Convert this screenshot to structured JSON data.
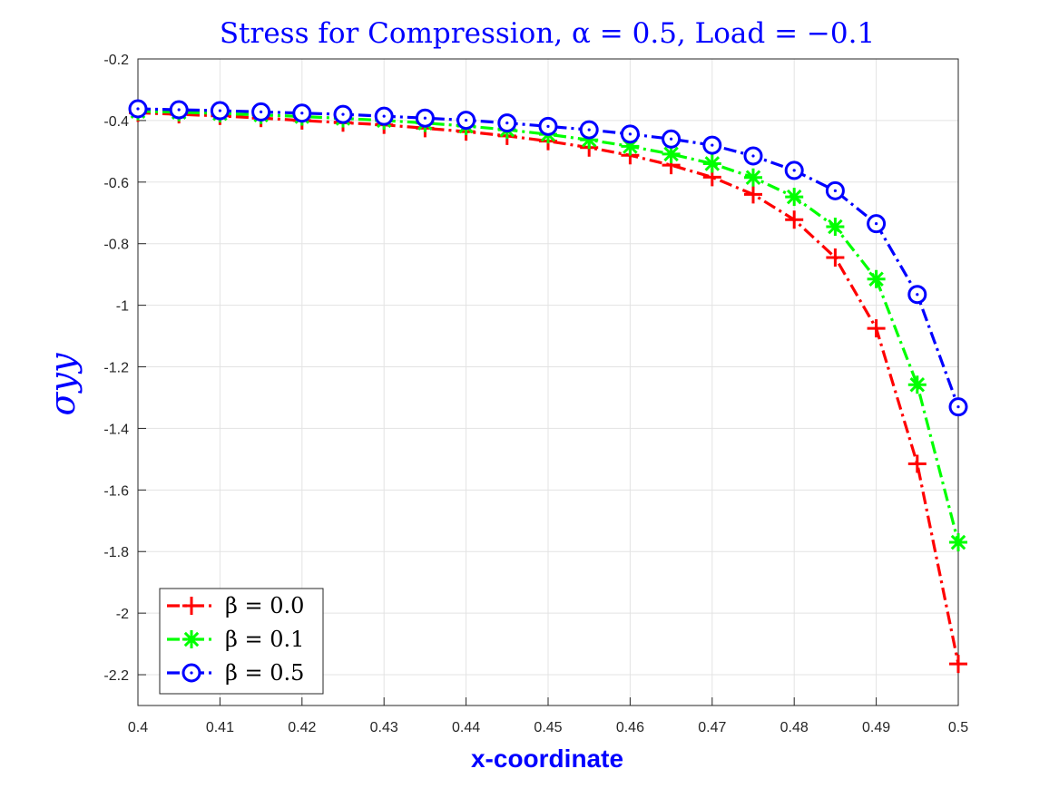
{
  "chart_data": {
    "type": "line",
    "title": "Stress for Compression, α = 0.5, Load = −0.1",
    "title_color": "#0000ff",
    "xlabel": "x-coordinate",
    "ylabel": "σyy",
    "label_color": "#0000ff",
    "xlim": [
      0.4,
      0.5
    ],
    "ylim": [
      -2.3,
      -0.2
    ],
    "xticks": [
      0.4,
      0.41,
      0.42,
      0.43,
      0.44,
      0.45,
      0.46,
      0.47,
      0.48,
      0.49,
      0.5
    ],
    "xtick_labels": [
      "0.4",
      "0.41",
      "0.42",
      "0.43",
      "0.44",
      "0.45",
      "0.46",
      "0.47",
      "0.48",
      "0.49",
      "0.5"
    ],
    "yticks": [
      -0.2,
      -0.4,
      -0.6,
      -0.8,
      -1,
      -1.2,
      -1.4,
      -1.6,
      -1.8,
      -2,
      -2.2
    ],
    "ytick_labels": [
      "-0.2",
      "-0.4",
      "-0.6",
      "-0.8",
      "-1",
      "-1.2",
      "-1.4",
      "-1.6",
      "-1.8",
      "-2",
      "-2.2"
    ],
    "grid": true,
    "legend_position": "bottom-left",
    "x": [
      0.4,
      0.405,
      0.41,
      0.415,
      0.42,
      0.425,
      0.43,
      0.435,
      0.44,
      0.445,
      0.45,
      0.455,
      0.46,
      0.465,
      0.47,
      0.475,
      0.48,
      0.485,
      0.49,
      0.495,
      0.5
    ],
    "series": [
      {
        "name": "β = 0.0",
        "color": "#ff0000",
        "marker": "plus",
        "linestyle": "dashdot",
        "values": [
          -0.375,
          -0.38,
          -0.385,
          -0.392,
          -0.4,
          -0.407,
          -0.414,
          -0.425,
          -0.436,
          -0.45,
          -0.467,
          -0.488,
          -0.513,
          -0.545,
          -0.584,
          -0.64,
          -0.722,
          -0.845,
          -1.075,
          -1.515,
          -2.165
        ]
      },
      {
        "name": "β = 0.1",
        "color": "#00ff00",
        "marker": "asterisk",
        "linestyle": "dashdot",
        "values": [
          -0.37,
          -0.373,
          -0.377,
          -0.382,
          -0.387,
          -0.393,
          -0.4,
          -0.408,
          -0.418,
          -0.43,
          -0.445,
          -0.463,
          -0.484,
          -0.509,
          -0.54,
          -0.585,
          -0.648,
          -0.745,
          -0.915,
          -1.258,
          -1.77
        ]
      },
      {
        "name": "β = 0.5",
        "color": "#0000ff",
        "marker": "circle",
        "linestyle": "dashdot",
        "values": [
          -0.362,
          -0.365,
          -0.368,
          -0.372,
          -0.376,
          -0.38,
          -0.386,
          -0.392,
          -0.399,
          -0.408,
          -0.419,
          -0.43,
          -0.444,
          -0.46,
          -0.48,
          -0.515,
          -0.562,
          -0.628,
          -0.735,
          -0.965,
          -1.33
        ]
      }
    ]
  }
}
